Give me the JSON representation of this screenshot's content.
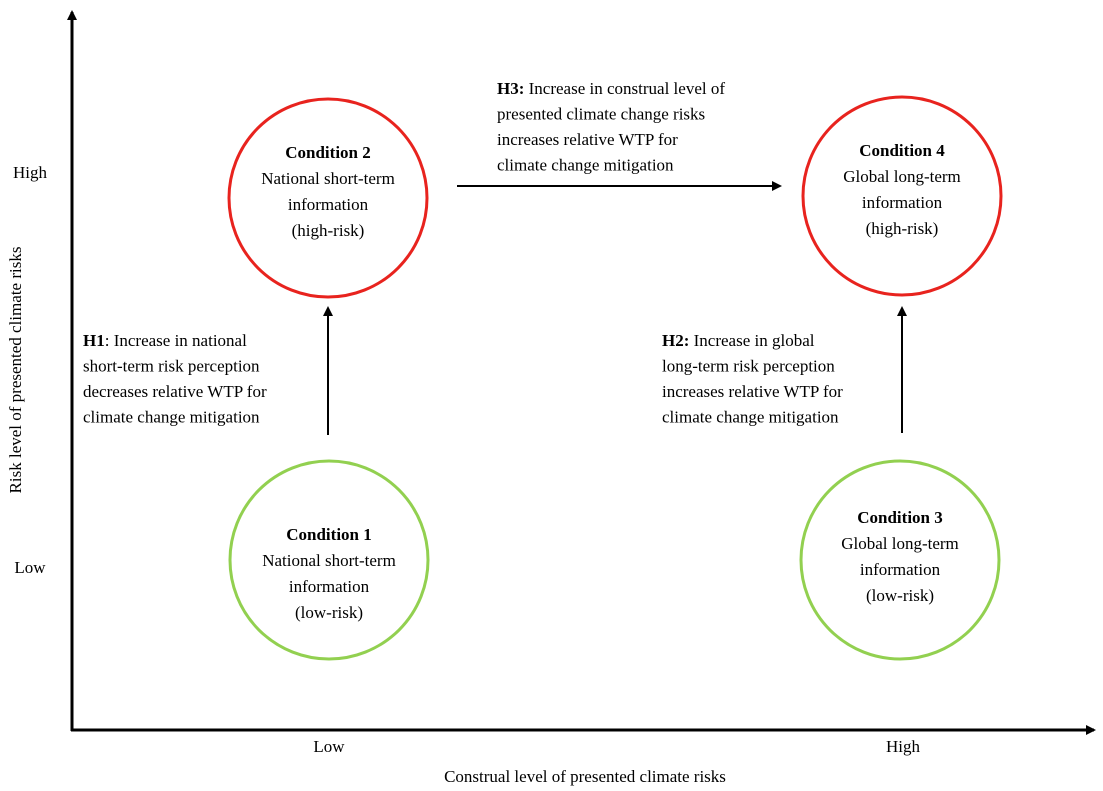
{
  "axes": {
    "x_label": "Construal level of presented climate risks",
    "y_label": "Risk level of presented climate risks",
    "x_ticks": [
      "Low",
      "High"
    ],
    "y_ticks": [
      "High",
      "Low"
    ]
  },
  "conditions": [
    {
      "title": "Condition 1",
      "lines": [
        "National short-term",
        "information",
        "(low-risk)"
      ]
    },
    {
      "title": "Condition 2",
      "lines": [
        "National short-term",
        "information",
        "(high-risk)"
      ]
    },
    {
      "title": "Condition 3",
      "lines": [
        "Global long-term",
        "information",
        "(low-risk)"
      ]
    },
    {
      "title": "Condition 4",
      "lines": [
        "Global long-term",
        "information",
        "(high-risk)"
      ]
    }
  ],
  "hypotheses": [
    {
      "label": "H1",
      "lines": [
        ": Increase in national",
        "short-term risk perception",
        "decreases relative WTP for",
        "climate change mitigation"
      ]
    },
    {
      "label": "H2:",
      "lines": [
        " Increase in global",
        "long-term risk perception",
        "increases relative WTP for",
        "climate change mitigation"
      ]
    },
    {
      "label": "H3:",
      "lines": [
        " Increase in construal level of",
        "presented climate change risks",
        "increases relative WTP for",
        "climate change mitigation"
      ]
    }
  ]
}
